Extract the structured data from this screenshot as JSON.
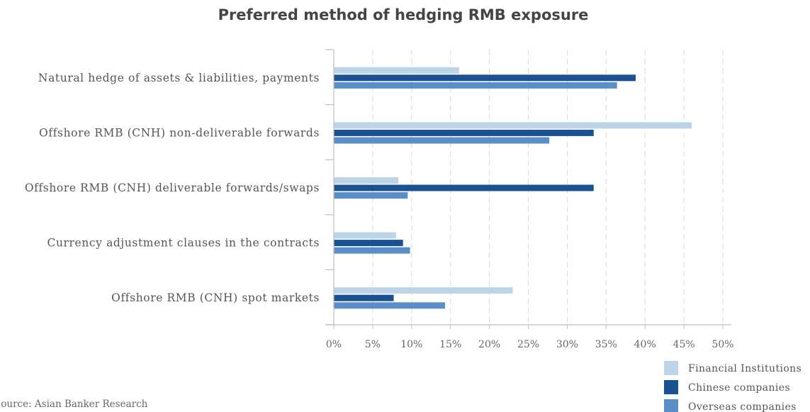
{
  "chart_data": {
    "type": "bar",
    "orientation": "horizontal",
    "title": "Preferred method of hedging RMB exposure",
    "categories": [
      "Natural hedge of assets & liabilities, payments",
      "Offshore RMB (CNH) non-deliverable forwards",
      "Offshore RMB (CNH) deliverable forwards/swaps",
      "Currency adjustment clauses in the contracts",
      "Offshore RMB (CNH) spot markets"
    ],
    "series": [
      {
        "name": "Financial Institutions",
        "color": "#bcd3e8",
        "values": [
          16.1,
          46.0,
          8.3,
          8.0,
          23.0
        ]
      },
      {
        "name": "Chinese companies",
        "color": "#1a5191",
        "values": [
          38.8,
          33.4,
          33.4,
          8.9,
          7.7
        ]
      },
      {
        "name": "Overseas companies",
        "color": "#5a8ec9",
        "values": [
          36.4,
          27.7,
          9.5,
          9.8,
          14.3
        ]
      }
    ],
    "xlim": [
      0,
      50
    ],
    "xticks": [
      0,
      5,
      10,
      15,
      20,
      25,
      30,
      35,
      40,
      45,
      50
    ],
    "xtick_labels": [
      "0%",
      "5%",
      "10%",
      "15%",
      "20%",
      "25%",
      "30%",
      "35%",
      "40%",
      "45%",
      "50%"
    ],
    "grid": "vertical dashed",
    "legend_position": "bottom-right",
    "source": "Source: Asian Banker Research"
  }
}
